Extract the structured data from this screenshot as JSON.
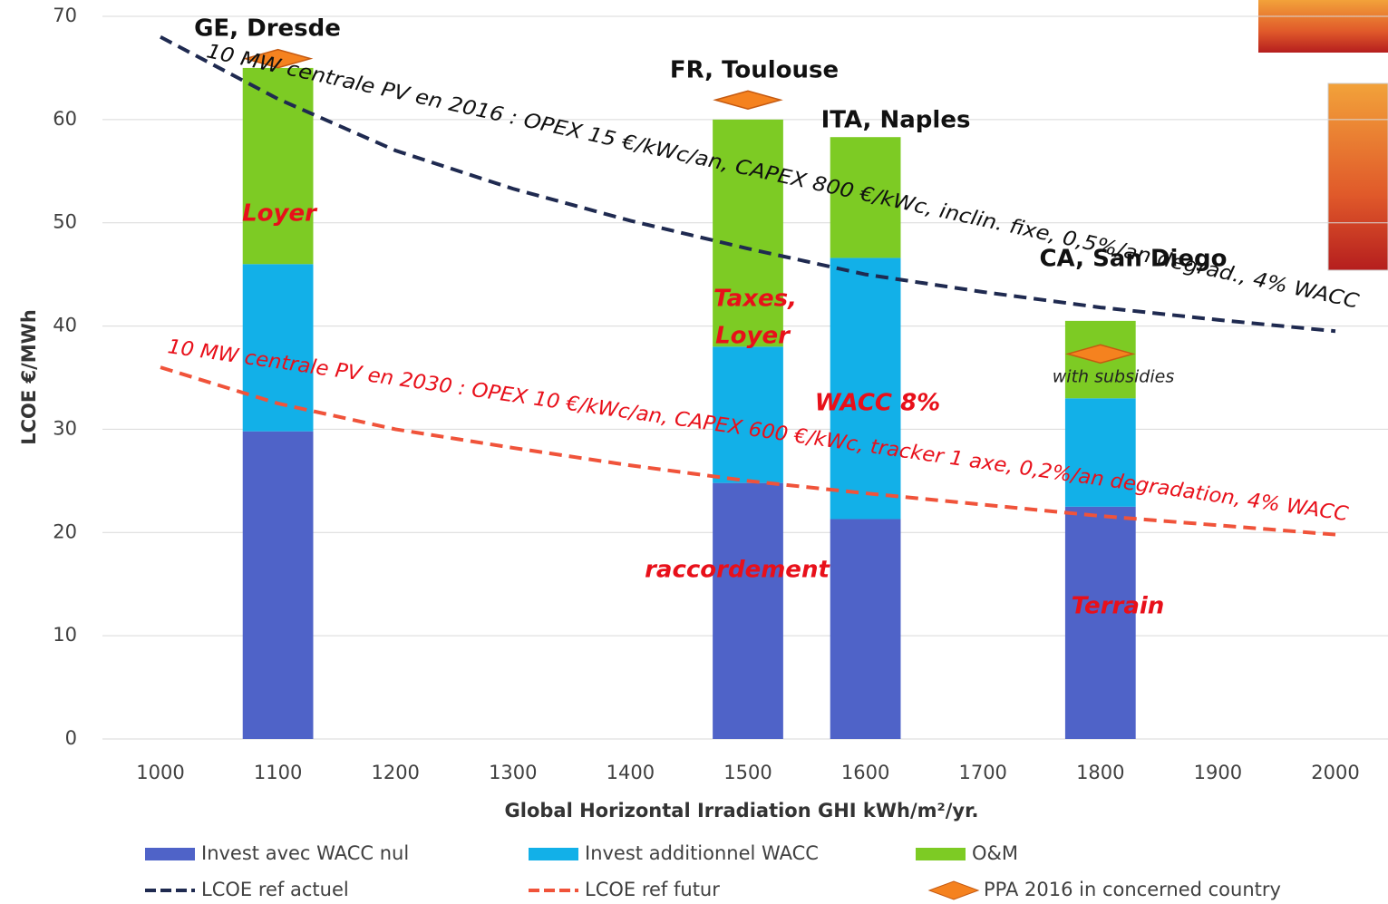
{
  "chart_data": {
    "type": "bar",
    "x": [
      1000,
      1100,
      1200,
      1300,
      1400,
      1500,
      1600,
      1700,
      1800,
      1900,
      2000
    ],
    "xlim": [
      1000,
      2000
    ],
    "xticks": [
      1000,
      1100,
      1200,
      1300,
      1400,
      1500,
      1600,
      1700,
      1800,
      1900,
      2000
    ],
    "ylim": [
      0,
      70
    ],
    "yticks": [
      0,
      10,
      20,
      30,
      40,
      50,
      60,
      70
    ],
    "grid": true,
    "x_label": "Global Horizontal Irradiation GHI  kWh/m²/yr.",
    "y_label": "LCOE €/MWh",
    "legend": "bottom",
    "series": [
      {
        "name": "Invest avec WACC nul",
        "kind": "bar",
        "color": "#4f63c8",
        "values": [
          null,
          29.8,
          null,
          null,
          null,
          24.8,
          21.3,
          null,
          22.5,
          null,
          null
        ]
      },
      {
        "name": "Invest additionnel WACC",
        "kind": "bar",
        "color": "#12b0e8",
        "values": [
          null,
          16.2,
          null,
          null,
          null,
          13.2,
          25.3,
          null,
          10.5,
          null,
          null
        ]
      },
      {
        "name": "O&M",
        "kind": "bar",
        "color": "#7dcb24",
        "values": [
          null,
          19,
          null,
          null,
          null,
          22,
          11.7,
          null,
          7.5,
          null,
          null
        ]
      },
      {
        "name": "LCOE ref actuel",
        "kind": "line",
        "color": "#1f2a50",
        "values": [
          68,
          62,
          57,
          53.3,
          50.2,
          47.5,
          45,
          43.3,
          41.8,
          40.6,
          39.5
        ]
      },
      {
        "name": "LCOE ref futur",
        "kind": "line",
        "color": "#f0533a",
        "values": [
          36,
          32.5,
          30,
          28.2,
          26.5,
          25,
          23.8,
          22.7,
          21.6,
          20.7,
          19.8
        ]
      },
      {
        "name": "PPA 2016 in  concerned country",
        "kind": "diamond",
        "color": "#f5821f",
        "values": [
          null,
          65.9,
          null,
          null,
          null,
          61.9,
          null,
          null,
          37.3,
          null,
          null
        ]
      }
    ],
    "line_labels": [
      "10 MW centrale PV en 2016 : OPEX 15 €/kWc/an, CAPEX 800 €/kWc, inclin. fixe, 0,5%/an degrad., 4% WACC",
      "10 MW centrale PV en 2030 : OPEX 10 €/kWc/an, CAPEX 600 €/kWc, tracker 1 axe, 0,2%/an degradation, 4% WACC"
    ],
    "annotations": [
      "GE, Dresde",
      "FR, Toulouse",
      "ITA, Naples",
      "CA, San Diego",
      "Loyer",
      "Taxes,",
      "Loyer",
      "WACC 8%",
      "raccordement",
      "Terrain",
      "with subsidies"
    ]
  }
}
